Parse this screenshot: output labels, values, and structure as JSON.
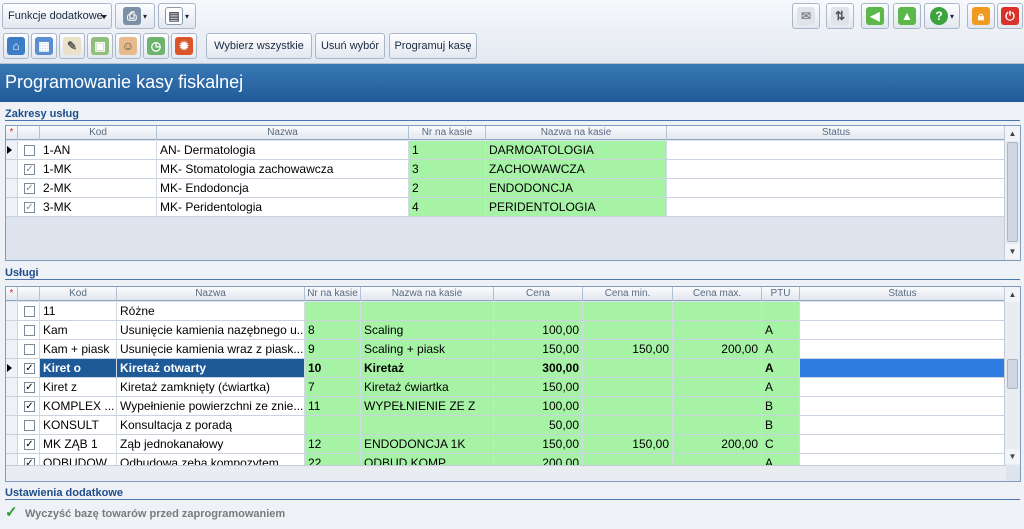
{
  "toolbar": {
    "funcs_dropdown": "Funkcje dodatkowe",
    "select_all": "Wybierz wszystkie",
    "remove_selection": "Usuń wybór",
    "program_register": "Programuj kasę"
  },
  "header": {
    "title": "Programowanie kasy fiskalnej"
  },
  "zakresy": {
    "section_title": "Zakresy usług",
    "columns": [
      "Kod",
      "Nazwa",
      "Nr na kasie",
      "Nazwa na kasie",
      "Status"
    ],
    "rows": [
      {
        "kod": "1-AN",
        "nazwa": "AN- Dermatologia",
        "nr": "1",
        "nazwa_kasie": "DARMOATOLOGIA",
        "status": "",
        "checked": "",
        "current": true
      },
      {
        "kod": "1-MK",
        "nazwa": "MK- Stomatologia zachowawcza",
        "nr": "3",
        "nazwa_kasie": "ZACHOWAWCZA",
        "status": "",
        "checked": "✓",
        "current": false
      },
      {
        "kod": "2-MK",
        "nazwa": "MK- Endodoncja",
        "nr": "2",
        "nazwa_kasie": "ENDODONCJA",
        "status": "",
        "checked": "✓",
        "current": false
      },
      {
        "kod": "3-MK",
        "nazwa": "MK- Peridentologia",
        "nr": "4",
        "nazwa_kasie": "PERIDENTOLOGIA",
        "status": "",
        "checked": "✓",
        "current": false
      }
    ]
  },
  "uslugi": {
    "section_title": "Usługi",
    "columns": [
      "Kod",
      "Nazwa",
      "Nr na kasie",
      "Nazwa na kasie",
      "Cena",
      "Cena min.",
      "Cena max.",
      "PTU",
      "Status"
    ],
    "rows": [
      {
        "kod": "11",
        "nazwa": "Różne",
        "nr": "",
        "nazwa_kasie": "",
        "cena": "",
        "cena_min": "",
        "cena_max": "",
        "ptu": "",
        "checked": ""
      },
      {
        "kod": "Kam",
        "nazwa": "Usunięcie kamienia nazębnego u...",
        "nr": "8",
        "nazwa_kasie": "Scaling",
        "cena": "100,00",
        "cena_min": "",
        "cena_max": "",
        "ptu": "A",
        "checked": ""
      },
      {
        "kod": "Kam + piask",
        "nazwa": "Usunięcie kamienia wraz z piask...",
        "nr": "9",
        "nazwa_kasie": "Scaling + piask",
        "cena": "150,00",
        "cena_min": "150,00",
        "cena_max": "200,00",
        "ptu": "A",
        "checked": ""
      },
      {
        "kod": "Kiret o",
        "nazwa": "Kiretaż otwarty",
        "nr": "10",
        "nazwa_kasie": "Kiretaż",
        "cena": "300,00",
        "cena_min": "",
        "cena_max": "",
        "ptu": "A",
        "checked": "✓",
        "selected": true
      },
      {
        "kod": "Kiret z",
        "nazwa": "Kiretaż zamknięty (ćwiartka)",
        "nr": "7",
        "nazwa_kasie": "Kiretaż ćwiartka",
        "cena": "150,00",
        "cena_min": "",
        "cena_max": "",
        "ptu": "A",
        "checked": "✓"
      },
      {
        "kod": "KOMPLEX ...",
        "nazwa": "Wypełnienie powierzchni ze znie...",
        "nr": "11",
        "nazwa_kasie": "WYPEŁNIENIE ZE Z",
        "cena": "100,00",
        "cena_min": "",
        "cena_max": "",
        "ptu": "B",
        "checked": "✓"
      },
      {
        "kod": "KONSULT",
        "nazwa": "Konsultacja z poradą",
        "nr": "",
        "nazwa_kasie": "",
        "cena": "50,00",
        "cena_min": "",
        "cena_max": "",
        "ptu": "B",
        "checked": ""
      },
      {
        "kod": "MK ZĄB 1",
        "nazwa": "Ząb jednokanałowy",
        "nr": "12",
        "nazwa_kasie": "ENDODONCJA 1K",
        "cena": "150,00",
        "cena_min": "150,00",
        "cena_max": "200,00",
        "ptu": "C",
        "checked": "✓"
      },
      {
        "kod": "ODBUDOW...",
        "nazwa": "Odbudowa zęba kompozytem",
        "nr": "22",
        "nazwa_kasie": "ODBUD KOMP",
        "cena": "200,00",
        "cena_min": "",
        "cena_max": "",
        "ptu": "A",
        "checked": "✓"
      }
    ]
  },
  "ustawienia": {
    "section_title": "Ustawienia dodatkowe",
    "clear_db_label": "Wyczyść bazę towarów przed zaprogramowaniem"
  },
  "colors": {
    "accent": "#1f5a98",
    "green_cells": "#a6f3a6",
    "selection": "#1f5a98"
  }
}
